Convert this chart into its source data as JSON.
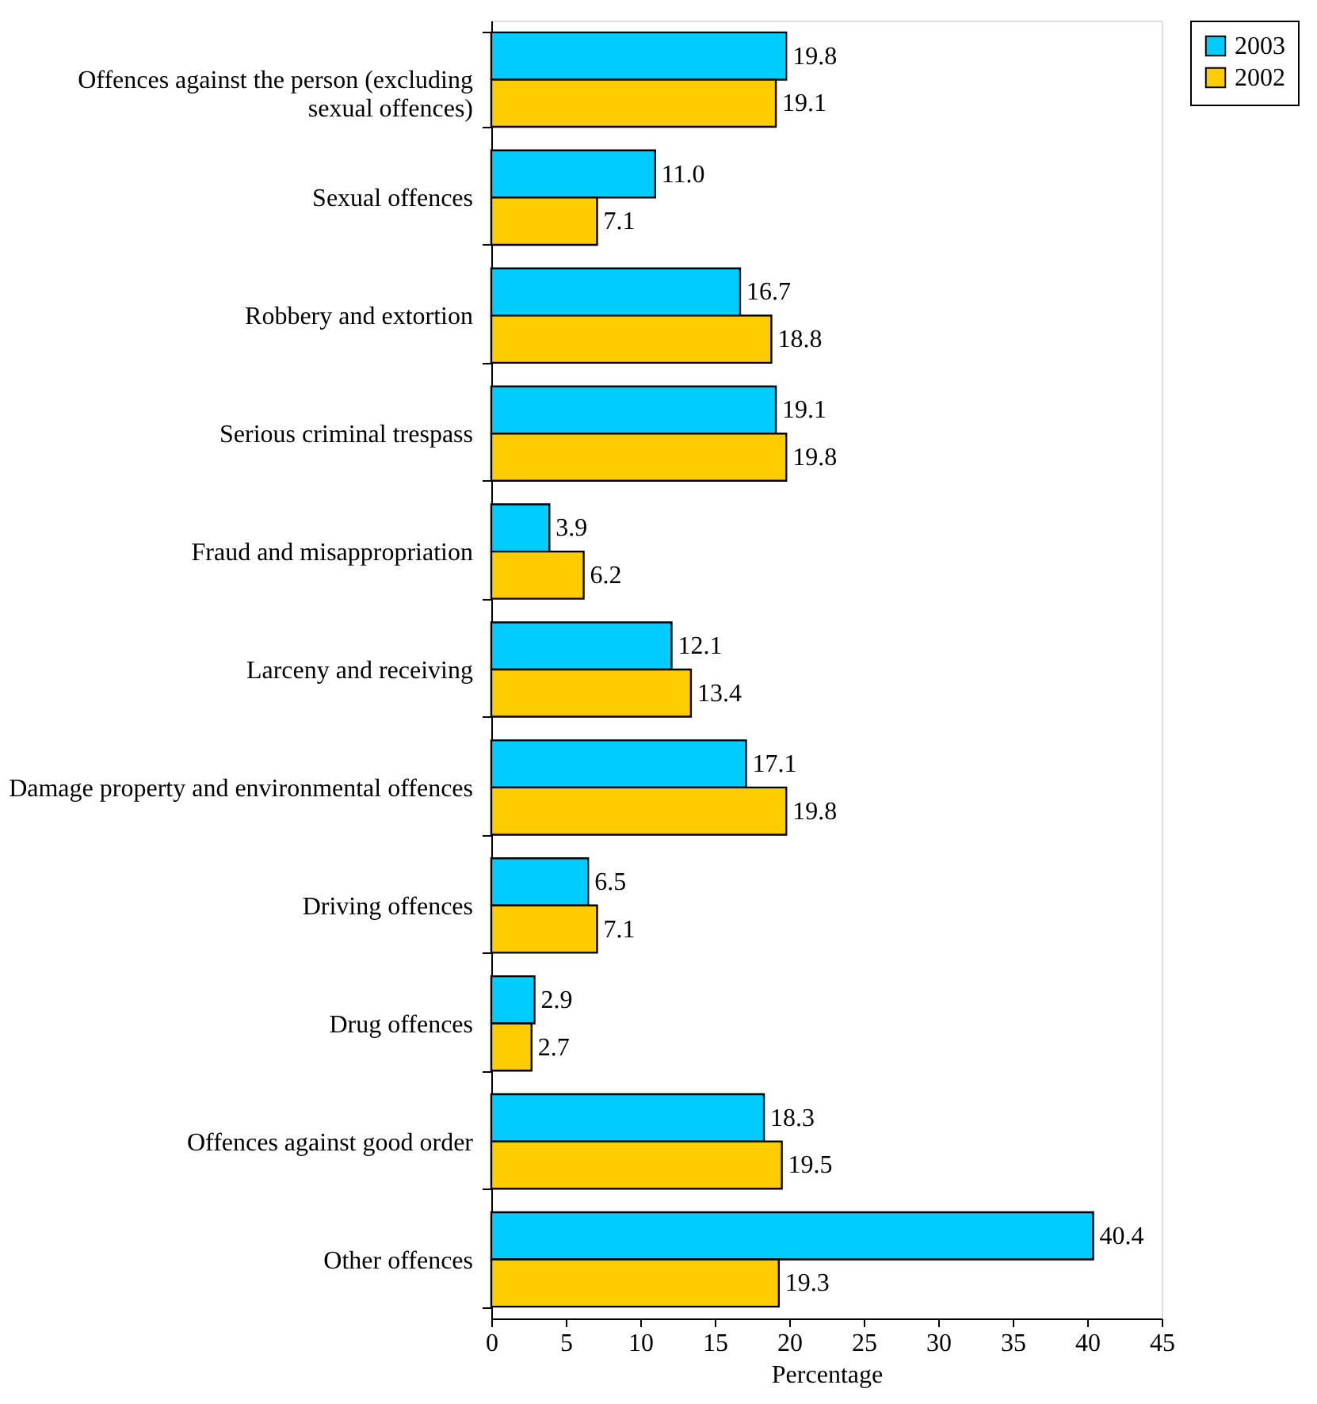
{
  "chart_data": {
    "type": "bar",
    "orientation": "horizontal",
    "xlabel": "Percentage",
    "categories": [
      "Offences against the person (excluding sexual offences)",
      "Sexual offences",
      "Robbery and extortion",
      "Serious criminal trespass",
      "Fraud and misappropriation",
      "Larceny and receiving",
      "Damage property and environmental offences",
      "Driving offences",
      "Drug offences",
      "Offences against good order",
      "Other offences"
    ],
    "series": [
      {
        "name": "2003",
        "color": "#00ccff",
        "values": [
          19.8,
          11.0,
          16.7,
          19.1,
          3.9,
          12.1,
          17.1,
          6.5,
          2.9,
          18.3,
          40.4
        ],
        "value_labels": [
          "19.8",
          "11.0",
          "16.7",
          "19.1",
          "3.9",
          "12.1",
          "17.1",
          "6.5",
          "2.9",
          "18.3",
          "40.4"
        ]
      },
      {
        "name": "2002",
        "color": "#ffcc00",
        "values": [
          19.1,
          7.1,
          18.8,
          19.8,
          6.2,
          13.4,
          19.8,
          7.1,
          2.7,
          19.5,
          19.3
        ],
        "value_labels": [
          "19.1",
          "7.1",
          "18.8",
          "19.8",
          "6.2",
          "13.4",
          "19.8",
          "7.1",
          "2.7",
          "19.5",
          "19.3"
        ]
      }
    ],
    "xlim": [
      0,
      45
    ],
    "xticks": [
      0,
      5,
      10,
      15,
      20,
      25,
      30,
      35,
      40,
      45
    ],
    "grid": false,
    "legend": "right"
  }
}
